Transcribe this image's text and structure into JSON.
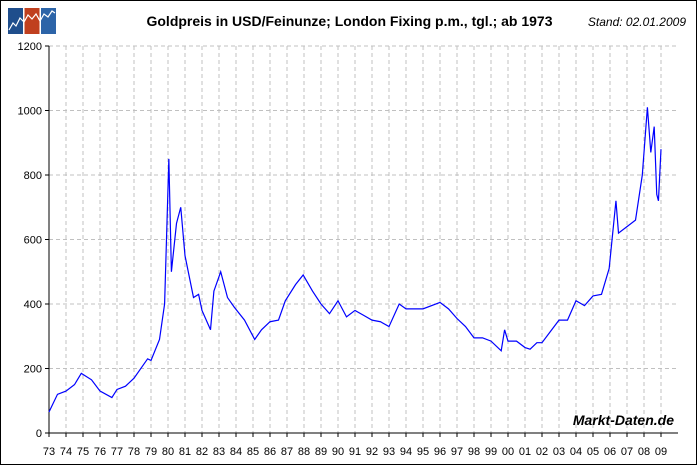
{
  "header": {
    "title": "Goldpreis in USD/Feinunze; London Fixing p.m., tgl.; ab 1973",
    "stand": "Stand: 02.01.2009",
    "logo_colors": [
      "#1f4e8c",
      "#c0401f",
      "#2c64a8"
    ]
  },
  "watermark": "Markt-Daten.de",
  "chart_data": {
    "type": "line",
    "title": "Goldpreis in USD/Feinunze; London Fixing p.m., tgl.; ab 1973",
    "xlabel": "",
    "ylabel": "",
    "xlim": [
      1973,
      2009.5
    ],
    "ylim": [
      0,
      1200
    ],
    "grid": true,
    "line_color": "#0000ff",
    "x_tick_labels": [
      "73",
      "74",
      "75",
      "76",
      "77",
      "78",
      "79",
      "80",
      "81",
      "82",
      "83",
      "84",
      "85",
      "86",
      "87",
      "88",
      "89",
      "90",
      "91",
      "92",
      "93",
      "94",
      "95",
      "96",
      "97",
      "98",
      "99",
      "00",
      "01",
      "02",
      "03",
      "04",
      "05",
      "06",
      "07",
      "08",
      "09"
    ],
    "y_ticks": [
      0,
      200,
      400,
      600,
      800,
      1000,
      1200
    ],
    "series": [
      {
        "x": [
          1973.0,
          1973.5,
          1974.0,
          1974.5,
          1974.9,
          1975.5,
          1976.0,
          1976.7,
          1977.0,
          1977.5,
          1978.0,
          1978.8,
          1979.0,
          1979.5,
          1979.8,
          1980.05,
          1980.2,
          1980.5,
          1980.75,
          1981.0,
          1981.5,
          1981.8,
          1982.0,
          1982.5,
          1982.7,
          1983.1,
          1983.5,
          1983.9,
          1984.5,
          1985.1,
          1985.5,
          1986.0,
          1986.5,
          1986.9,
          1987.5,
          1987.95,
          1988.5,
          1989.0,
          1989.5,
          1990.0,
          1990.5,
          1991.0,
          1991.5,
          1992.0,
          1992.5,
          1993.0,
          1993.6,
          1994.0,
          1995.0,
          1996.0,
          1996.5,
          1997.0,
          1997.5,
          1998.0,
          1998.5,
          1999.0,
          1999.6,
          1999.8,
          2000.0,
          2000.5,
          2001.0,
          2001.3,
          2001.7,
          2002.0,
          2002.5,
          2003.0,
          2003.5,
          2004.0,
          2004.5,
          2005.0,
          2005.5,
          2005.95,
          2006.35,
          2006.5,
          2007.0,
          2007.5,
          2007.9,
          2008.2,
          2008.4,
          2008.6,
          2008.75,
          2008.85,
          2009.0
        ],
        "y": [
          65,
          120,
          130,
          150,
          185,
          165,
          130,
          110,
          135,
          145,
          170,
          230,
          225,
          290,
          400,
          850,
          500,
          650,
          700,
          550,
          420,
          430,
          380,
          320,
          440,
          500,
          420,
          390,
          350,
          290,
          320,
          345,
          350,
          410,
          460,
          490,
          440,
          400,
          370,
          410,
          360,
          380,
          365,
          350,
          345,
          330,
          400,
          385,
          385,
          405,
          385,
          355,
          330,
          295,
          295,
          285,
          255,
          320,
          285,
          285,
          265,
          260,
          280,
          280,
          315,
          350,
          350,
          410,
          395,
          425,
          430,
          510,
          720,
          620,
          640,
          660,
          800,
          1010,
          870,
          950,
          740,
          720,
          880
        ]
      }
    ]
  }
}
